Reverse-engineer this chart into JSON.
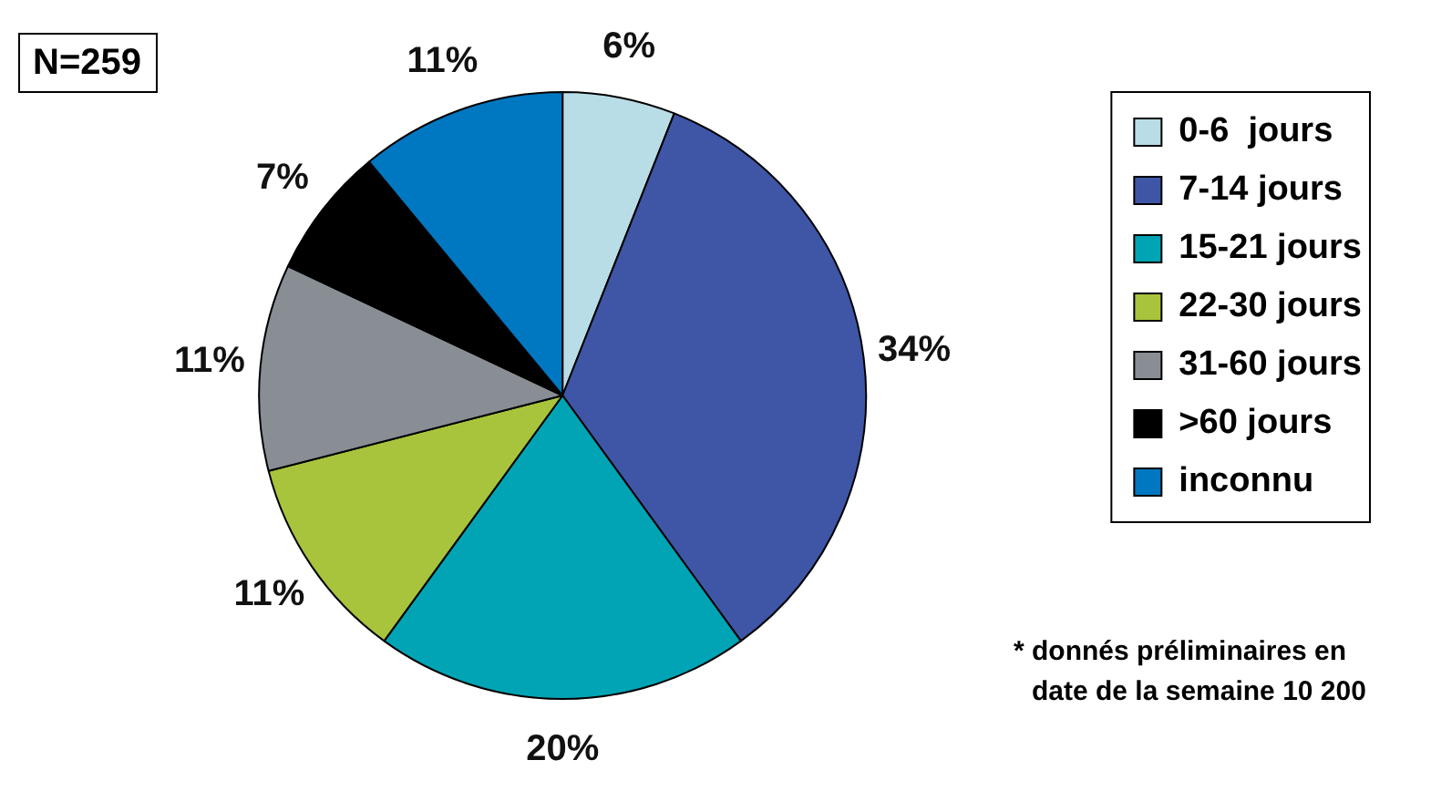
{
  "chart_data": {
    "type": "pie",
    "categories": [
      "0-6  jours",
      "7-14 jours",
      "15-21 jours",
      "22-30 jours",
      "31-60 jours",
      ">60 jours",
      "inconnu"
    ],
    "values": [
      6,
      34,
      20,
      11,
      11,
      7,
      11
    ],
    "colors": [
      "#b9dde7",
      "#3f56a6",
      "#00a4b4",
      "#a8c43c",
      "#898e95",
      "#000000",
      "#0077c1"
    ],
    "value_labels": [
      "6%",
      "34%",
      "20%",
      "11%",
      "11%",
      "7%",
      "11%"
    ],
    "legend": "right",
    "annotations": [
      "N=259",
      "* donnés préliminaires en date de la semaine 10 200"
    ]
  }
}
